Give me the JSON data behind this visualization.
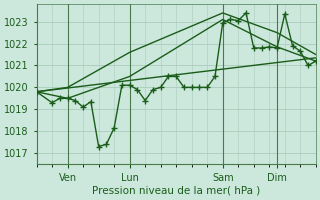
{
  "xlabel": "Pression niveau de la mer( hPa )",
  "bg_color": "#cce8dc",
  "grid_color": "#aaccbb",
  "line_color": "#1a5c1a",
  "xlim": [
    0,
    72
  ],
  "ylim": [
    1016.5,
    1023.8
  ],
  "yticks": [
    1017,
    1018,
    1019,
    1020,
    1021,
    1022,
    1023
  ],
  "xtick_positions": [
    8,
    24,
    48,
    62
  ],
  "xtick_labels": [
    "Ven",
    "Lun",
    "Sam",
    "Dim"
  ],
  "vlines": [
    8,
    24,
    48,
    62
  ],
  "series_main": {
    "x": [
      0,
      4,
      6,
      8,
      10,
      12,
      14,
      16,
      18,
      20,
      22,
      24,
      26,
      28,
      30,
      32,
      34,
      36,
      38,
      40,
      42,
      44,
      46,
      48,
      50,
      52,
      54,
      56,
      58,
      60,
      62,
      64,
      66,
      68,
      70,
      72
    ],
    "y": [
      1019.8,
      1019.3,
      1019.5,
      1019.5,
      1019.4,
      1019.1,
      1019.35,
      1017.3,
      1017.4,
      1018.15,
      1020.1,
      1020.1,
      1019.9,
      1019.4,
      1019.9,
      1020.0,
      1020.5,
      1020.5,
      1020.0,
      1020.0,
      1020.0,
      1020.0,
      1020.5,
      1022.95,
      1023.1,
      1023.05,
      1023.4,
      1021.8,
      1021.8,
      1021.85,
      1021.8,
      1023.35,
      1021.9,
      1021.65,
      1021.0,
      1021.2
    ]
  },
  "series_line1": {
    "x": [
      0,
      8,
      24,
      48,
      62,
      72
    ],
    "y": [
      1019.8,
      1019.5,
      1020.5,
      1023.1,
      1021.85,
      1021.2
    ]
  },
  "series_line2": {
    "x": [
      0,
      8,
      24,
      48,
      62,
      72
    ],
    "y": [
      1019.8,
      1020.0,
      1021.6,
      1023.4,
      1022.5,
      1021.5
    ]
  },
  "series_trend": {
    "x": [
      0,
      72
    ],
    "y": [
      1019.8,
      1021.35
    ]
  },
  "marker": "+",
  "markersize": 4,
  "linewidth": 1.0
}
